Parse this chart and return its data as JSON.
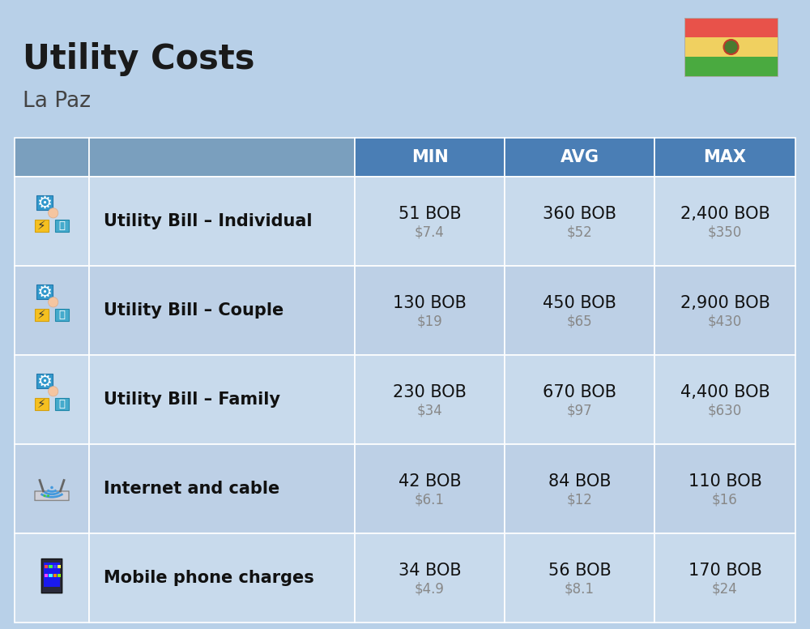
{
  "title": "Utility Costs",
  "subtitle": "La Paz",
  "background_color": "#b8d0e8",
  "header_bg_color": "#4a7eb5",
  "header_text_color": "#ffffff",
  "row_bg_color_1": "#c8daec",
  "row_bg_color_2": "#bdd0e6",
  "icon_col_bg": "#9ab8d0",
  "label_col_bg": "#9ab8d0",
  "col_headers": [
    "MIN",
    "AVG",
    "MAX"
  ],
  "rows": [
    {
      "label": "Utility Bill – Individual",
      "min_bob": "51 BOB",
      "min_usd": "$7.4",
      "avg_bob": "360 BOB",
      "avg_usd": "$52",
      "max_bob": "2,400 BOB",
      "max_usd": "$350"
    },
    {
      "label": "Utility Bill – Couple",
      "min_bob": "130 BOB",
      "min_usd": "$19",
      "avg_bob": "450 BOB",
      "avg_usd": "$65",
      "max_bob": "2,900 BOB",
      "max_usd": "$430"
    },
    {
      "label": "Utility Bill – Family",
      "min_bob": "230 BOB",
      "min_usd": "$34",
      "avg_bob": "670 BOB",
      "avg_usd": "$97",
      "max_bob": "4,400 BOB",
      "max_usd": "$630"
    },
    {
      "label": "Internet and cable",
      "min_bob": "42 BOB",
      "min_usd": "$6.1",
      "avg_bob": "84 BOB",
      "avg_usd": "$12",
      "max_bob": "110 BOB",
      "max_usd": "$16"
    },
    {
      "label": "Mobile phone charges",
      "min_bob": "34 BOB",
      "min_usd": "$4.9",
      "avg_bob": "56 BOB",
      "avg_usd": "$8.1",
      "max_bob": "170 BOB",
      "max_usd": "$24"
    }
  ],
  "flag_colors": [
    "#e8524a",
    "#f0d060",
    "#4aaa40"
  ],
  "title_fontsize": 30,
  "subtitle_fontsize": 19,
  "label_fontsize": 15,
  "value_fontsize": 15,
  "usd_fontsize": 12,
  "header_fontsize": 15
}
